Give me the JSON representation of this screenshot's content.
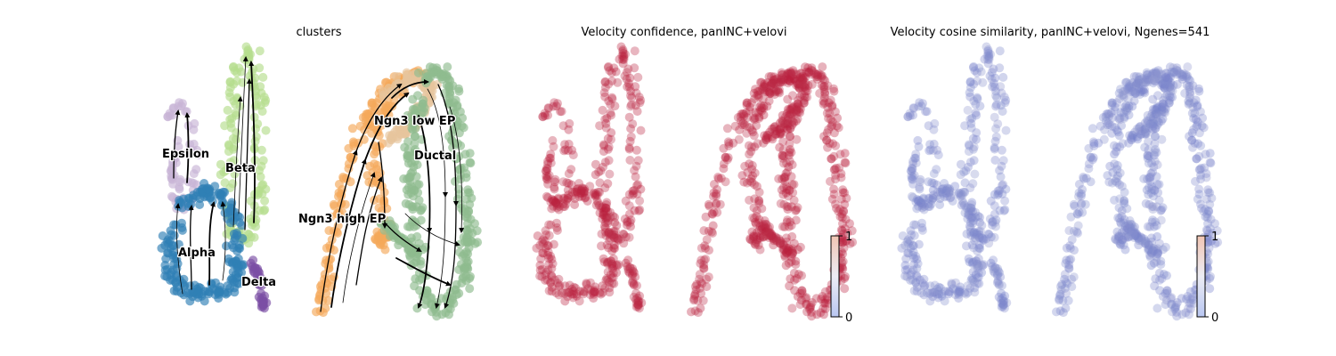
{
  "chart_data": [
    {
      "type": "scatter",
      "title": "clusters",
      "series": [
        {
          "name": "Ductal",
          "color": "#8fbc8f"
        },
        {
          "name": "Ngn3 low EP",
          "color": "#e6c49c"
        },
        {
          "name": "Ngn3 high EP",
          "color": "#f4a95a"
        },
        {
          "name": "Epsilon",
          "color": "#c8b3d6"
        },
        {
          "name": "Beta",
          "color": "#b5dd8e"
        },
        {
          "name": "Alpha",
          "color": "#2f7fb5"
        },
        {
          "name": "Delta",
          "color": "#7b4fa5"
        }
      ],
      "streamlines": true
    },
    {
      "type": "scatter",
      "title": "Velocity confidence, panINC+velovi",
      "colorbar": {
        "min": 0,
        "max": 1,
        "ticks": [
          "1",
          "0"
        ],
        "colormap": "coolwarm"
      },
      "value_level": 0.92
    },
    {
      "type": "scatter",
      "title": "Velocity cosine similarity, panINC+velovi, Ngenes=541",
      "colorbar": {
        "min": 0,
        "max": 1,
        "ticks": [
          "1",
          "0"
        ],
        "colormap": "coolwarm"
      },
      "value_level": 0.22
    }
  ]
}
